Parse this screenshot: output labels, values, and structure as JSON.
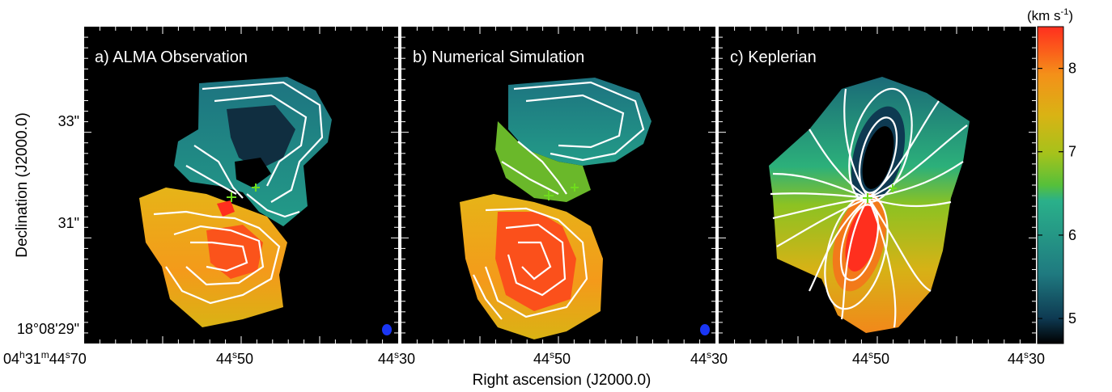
{
  "chart_data": {
    "type": "heatmap",
    "xlabel": "Right ascension (J2000.0)",
    "ylabel": "Declination (J2000.0)",
    "x_tick_labels": [
      "04h31m44s70",
      "44s50",
      "44s30"
    ],
    "y_tick_labels": [
      "33\"",
      "31\"",
      "18°08'29\""
    ],
    "colorbar": {
      "unit": "(km s-1)",
      "range": [
        4.7,
        8.5
      ],
      "ticks": [
        5,
        6,
        7,
        8
      ],
      "colors": [
        "#000000",
        "#0e3a52",
        "#1f7a80",
        "#2ab08a",
        "#56c03a",
        "#a6c21b",
        "#d9b314",
        "#f49019",
        "#fb5a1b",
        "#ff2f1e"
      ]
    },
    "panels": [
      {
        "title": "a) ALMA Observation",
        "beam": true
      },
      {
        "title": "b) Numerical Simulation",
        "beam": true
      },
      {
        "title": "c) Keplerian",
        "beam": false
      }
    ]
  }
}
